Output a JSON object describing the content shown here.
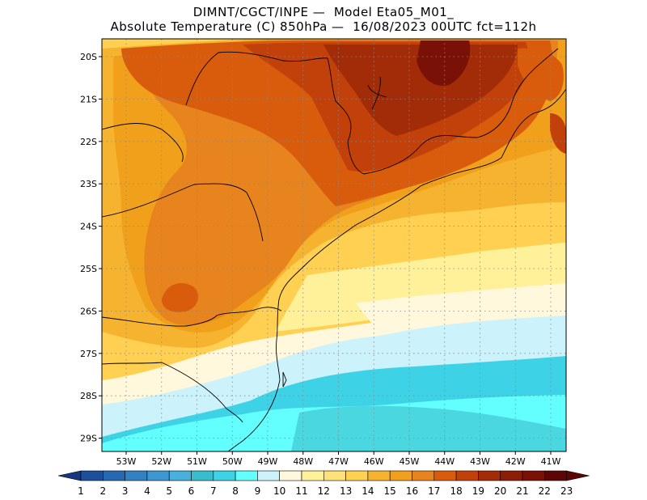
{
  "header": {
    "line1": "DIMNT/CGCT/INPE —  Model Eta05_M01_",
    "line2": "Absolute Temperature (C) 850hPa —  16/08/2023 00UTC fct=112h"
  },
  "map": {
    "lat_labels": [
      "20S",
      "21S",
      "22S",
      "23S",
      "24S",
      "25S",
      "26S",
      "27S",
      "28S",
      "29S"
    ],
    "lon_labels": [
      "53W",
      "52W",
      "51W",
      "50W",
      "49W",
      "48W",
      "47W",
      "46W",
      "45W",
      "44W",
      "43W",
      "42W",
      "41W"
    ],
    "colors": {
      "t10": "#ccf2fb",
      "t8": "#3ed2e6",
      "t9": "#63ffff",
      "t7": "#3bbccc",
      "t11": "#fff8dc",
      "t12": "#fff09a",
      "t13": "#ffe17a",
      "t14": "#ffd051",
      "t15": "#f6b330",
      "t16": "#f0a01a",
      "t17": "#e8841e",
      "t18": "#d95c0d",
      "t19": "#c2410a",
      "t20": "#a32c08",
      "t22": "#7a1107"
    }
  },
  "colorbar": {
    "labels": [
      "1",
      "2",
      "3",
      "4",
      "5",
      "6",
      "7",
      "8",
      "9",
      "10",
      "11",
      "12",
      "13",
      "14",
      "15",
      "16",
      "17",
      "18",
      "19",
      "20",
      "21",
      "22",
      "23"
    ],
    "colors": [
      "#18357f",
      "#1d4f9b",
      "#2768b2",
      "#3380c2",
      "#3d97d0",
      "#48b0dd",
      "#3bbccc",
      "#3ed2e6",
      "#63ffff",
      "#ccf2fb",
      "#fff8dc",
      "#fff09a",
      "#ffe17a",
      "#ffd051",
      "#f6b330",
      "#f0a01a",
      "#e8841e",
      "#d95c0d",
      "#c2410a",
      "#a32c08",
      "#8c1d07",
      "#7a1107",
      "#5c0606"
    ]
  }
}
